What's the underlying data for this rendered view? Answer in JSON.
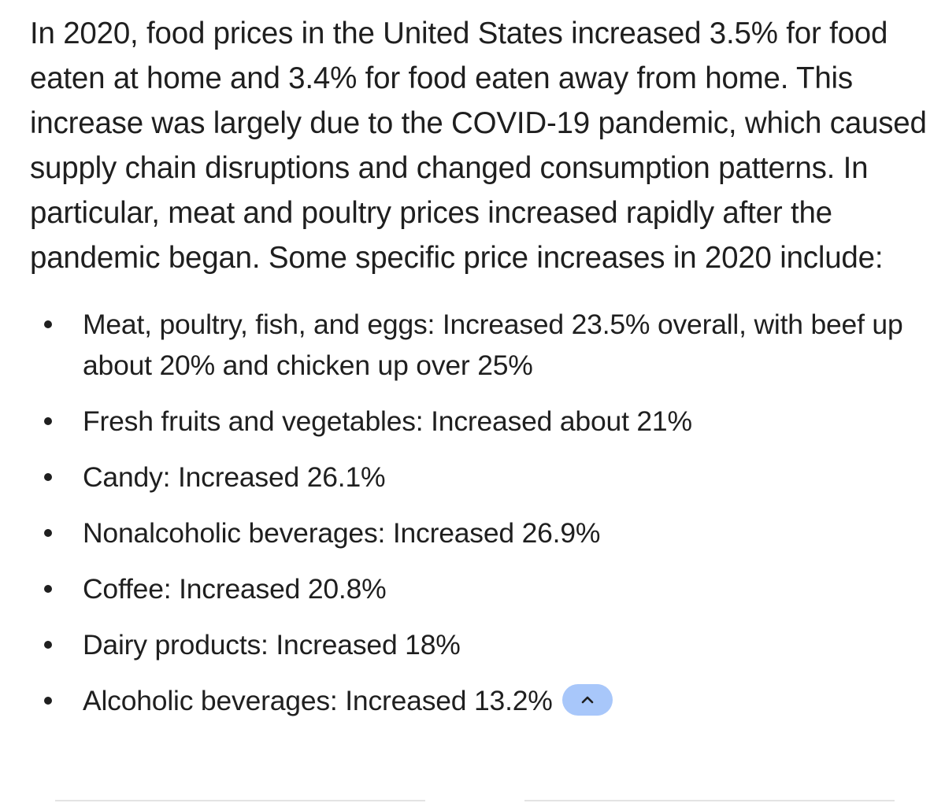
{
  "response": {
    "intro": "In 2020, food prices in the United States increased 3.5% for food eaten at home and 3.4% for food eaten away from home. This increase was largely due to the COVID-19 pandemic, which caused supply chain disruptions and changed consumption patterns. In particular, meat and poultry prices increased rapidly after the pandemic began. Some specific price increases in 2020 include:",
    "items": [
      "Meat, poultry, fish, and eggs: Increased 23.5% overall, with beef up about 20% and chicken up over 25%",
      "Fresh fruits and vegetables: Increased about 21%",
      "Candy: Increased 26.1%",
      "Nonalcoholic beverages: Increased 26.9%",
      "Coffee: Increased 20.8%",
      "Dairy products: Increased 18%",
      "Alcoholic beverages: Increased 13.2%"
    ]
  },
  "collapse_button": {
    "icon": "chevron-up-icon",
    "color": "#a8c7fa"
  }
}
